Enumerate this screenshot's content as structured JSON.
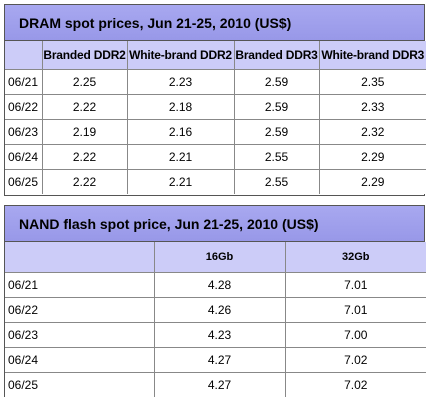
{
  "dram": {
    "title": "DRAM spot prices, Jun 21-25, 2010 (US$)",
    "columns": [
      "Branded DDR2",
      "White-brand DDR2",
      "Branded DDR3",
      "White-brand DDR3"
    ],
    "rows": [
      {
        "date": "06/21",
        "values": [
          "2.25",
          "2.23",
          "2.59",
          "2.35"
        ]
      },
      {
        "date": "06/22",
        "values": [
          "2.22",
          "2.18",
          "2.59",
          "2.33"
        ]
      },
      {
        "date": "06/23",
        "values": [
          "2.19",
          "2.16",
          "2.59",
          "2.32"
        ]
      },
      {
        "date": "06/24",
        "values": [
          "2.22",
          "2.21",
          "2.55",
          "2.29"
        ]
      },
      {
        "date": "06/25",
        "values": [
          "2.22",
          "2.21",
          "2.55",
          "2.29"
        ]
      }
    ]
  },
  "nand": {
    "title": "NAND flash spot price, Jun 21-25, 2010 (US$)",
    "columns": [
      "16Gb",
      "32Gb"
    ],
    "rows": [
      {
        "date": "06/21",
        "values": [
          "4.28",
          "7.01"
        ]
      },
      {
        "date": "06/22",
        "values": [
          "4.26",
          "7.01"
        ]
      },
      {
        "date": "06/23",
        "values": [
          "4.23",
          "7.00"
        ]
      },
      {
        "date": "06/24",
        "values": [
          "4.27",
          "7.02"
        ]
      },
      {
        "date": "06/25",
        "values": [
          "4.27",
          "7.02"
        ]
      }
    ]
  },
  "colors": {
    "title_background": "#9f9fec",
    "header_background": "#ccccf8",
    "border": "#555555"
  }
}
